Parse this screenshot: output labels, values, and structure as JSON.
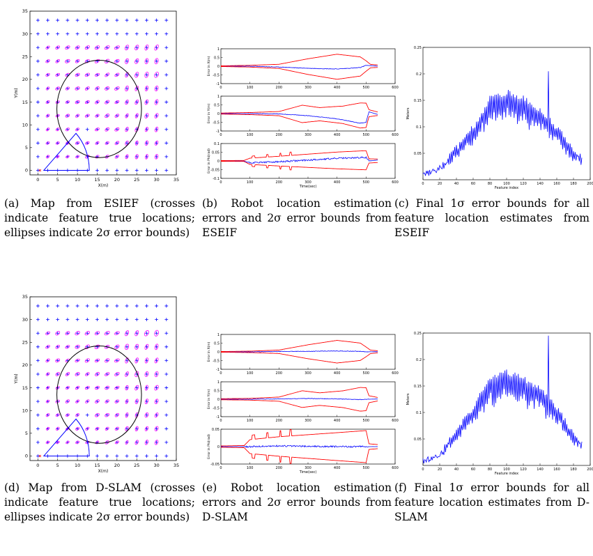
{
  "colors": {
    "axis": "#000000",
    "error": "#0000ff",
    "bound": "#ff0000",
    "landmark": "#0000ff",
    "ellipse": "#ff00ff",
    "circle": "#000000"
  },
  "captions": [
    {
      "id": "a",
      "text": "(a) Map from ESIEF (crosses indicate feature true locations; ellipses indicate 2σ error bounds)"
    },
    {
      "id": "b",
      "text": "(b) Robot location estimation errors and 2σ error bounds from ESEIF"
    },
    {
      "id": "c",
      "text": "(c) Final 1σ error bounds for all feature location estimates from ESEIF"
    },
    {
      "id": "d",
      "text": "(d) Map from D-SLAM (crosses indicate feature true locations; ellipses indicate 2σ error bounds)"
    },
    {
      "id": "e",
      "text": "(e) Robot location estimation errors and 2σ error bounds from D-SLAM"
    },
    {
      "id": "f",
      "text": "(f) Final 1σ error bounds for all feature location estimates from D-SLAM"
    }
  ],
  "chart_data": [
    {
      "id": "a",
      "type": "scatter",
      "xlabel": "X(m)",
      "ylabel": "Y(m)",
      "xlim": [
        -2,
        35
      ],
      "ylim": [
        -1,
        35
      ],
      "xticks": [
        0,
        5,
        10,
        15,
        20,
        25,
        30,
        35
      ],
      "yticks": [
        0,
        5,
        10,
        15,
        20,
        25,
        30,
        35
      ],
      "landmarks": {
        "x_start": 0,
        "x_end": 34,
        "x_step": 2.5,
        "y_start": 0,
        "y_end": 34,
        "y_step": 3
      },
      "circle": {
        "cx": 15.5,
        "cy": 13.5,
        "r": 10.7
      },
      "sensor_wedge": {
        "apex": [
          1.5,
          0
        ],
        "range": 11.5,
        "angles_deg": [
          0,
          45
        ]
      }
    },
    {
      "id": "b",
      "type": "line",
      "xlabel": "Time(sec)",
      "xlim": [
        0,
        600
      ],
      "xticks": [
        0,
        100,
        200,
        300,
        400,
        500,
        600
      ],
      "subplots": [
        {
          "ylabel": "Error in X(m)",
          "ylim": [
            -1,
            1
          ],
          "yticks": [
            "-1",
            "-0.5",
            "0",
            "0.5",
            "1"
          ],
          "bound_points": [
            [
              0,
              0.02
            ],
            [
              100,
              0.05
            ],
            [
              200,
              0.12
            ],
            [
              300,
              0.45
            ],
            [
              400,
              0.72
            ],
            [
              480,
              0.55
            ],
            [
              500,
              0.3
            ],
            [
              515,
              0.1
            ],
            [
              540,
              0.07
            ]
          ],
          "error_points": [
            [
              0,
              0
            ],
            [
              100,
              0
            ],
            [
              200,
              -0.05
            ],
            [
              300,
              -0.12
            ],
            [
              400,
              -0.16
            ],
            [
              480,
              -0.08
            ],
            [
              500,
              0.05
            ],
            [
              540,
              0
            ]
          ]
        },
        {
          "ylabel": "Error in Y(m)",
          "ylim": [
            -1,
            1
          ],
          "yticks": [
            "-1",
            "-0.5",
            "0",
            "0.5",
            "1"
          ],
          "bound_points": [
            [
              0,
              0.03
            ],
            [
              100,
              0.06
            ],
            [
              200,
              0.12
            ],
            [
              280,
              0.5
            ],
            [
              340,
              0.38
            ],
            [
              420,
              0.5
            ],
            [
              480,
              0.72
            ],
            [
              500,
              0.7
            ],
            [
              510,
              0.2
            ],
            [
              540,
              0.1
            ]
          ],
          "error_points": [
            [
              0,
              0
            ],
            [
              100,
              0
            ],
            [
              200,
              -0.02
            ],
            [
              300,
              -0.12
            ],
            [
              400,
              -0.3
            ],
            [
              480,
              -0.55
            ],
            [
              500,
              -0.5
            ],
            [
              510,
              0.1
            ],
            [
              540,
              -0.05
            ]
          ]
        },
        {
          "ylabel": "Error in Phi(rad)",
          "ylim": [
            -0.1,
            0.1
          ],
          "yticks": [
            "-0.1",
            "-0.05",
            "0",
            "0.05",
            "0.1"
          ],
          "bound_points": [
            [
              0,
              0.002
            ],
            [
              80,
              0.003
            ],
            [
              100,
              0.018
            ],
            [
              200,
              0.028
            ],
            [
              300,
              0.038
            ],
            [
              400,
              0.048
            ],
            [
              500,
              0.055
            ],
            [
              510,
              0.012
            ],
            [
              540,
              0.01
            ]
          ],
          "error_points": [
            [
              0,
              0
            ],
            [
              80,
              0
            ],
            [
              100,
              -0.01
            ],
            [
              200,
              -0.005
            ],
            [
              300,
              0.005
            ],
            [
              400,
              0.015
            ],
            [
              500,
              0.02
            ],
            [
              510,
              0
            ],
            [
              540,
              0.005
            ]
          ]
        }
      ]
    },
    {
      "id": "c",
      "type": "line",
      "xlabel": "Feature index",
      "ylabel": "Meters",
      "xlim": [
        0,
        200
      ],
      "ylim": [
        0,
        0.25
      ],
      "xticks": [
        0,
        20,
        40,
        60,
        80,
        100,
        120,
        140,
        160,
        180,
        200
      ],
      "yticks": [
        "0.05",
        "0.1",
        "0.15",
        "0.2",
        "0.25"
      ],
      "envelope_points": [
        [
          0,
          0.008
        ],
        [
          20,
          0.02
        ],
        [
          40,
          0.055
        ],
        [
          60,
          0.09
        ],
        [
          80,
          0.14
        ],
        [
          100,
          0.15
        ],
        [
          120,
          0.14
        ],
        [
          140,
          0.12
        ],
        [
          160,
          0.09
        ],
        [
          180,
          0.05
        ],
        [
          190,
          0.04
        ]
      ],
      "peak_max": 0.205
    },
    {
      "id": "d",
      "type": "scatter",
      "xlabel": "X(m)",
      "ylabel": "Y(m)",
      "xlim": [
        -2,
        35
      ],
      "ylim": [
        -1,
        35
      ],
      "xticks": [
        0,
        5,
        10,
        15,
        20,
        25,
        30,
        35
      ],
      "yticks": [
        0,
        5,
        10,
        15,
        20,
        25,
        30,
        35
      ],
      "landmarks": {
        "x_start": 0,
        "x_end": 34,
        "x_step": 2.5,
        "y_start": 0,
        "y_end": 34,
        "y_step": 3
      },
      "circle": {
        "cx": 15.5,
        "cy": 13.5,
        "r": 10.7
      },
      "sensor_wedge": {
        "apex": [
          1.5,
          0
        ],
        "range": 11.5,
        "angles_deg": [
          0,
          45
        ]
      }
    },
    {
      "id": "e",
      "type": "line",
      "xlabel": "Time(sec)",
      "xlim": [
        0,
        600
      ],
      "xticks": [
        0,
        100,
        200,
        300,
        400,
        500,
        600
      ],
      "subplots": [
        {
          "ylabel": "Error in X(m)",
          "ylim": [
            -1,
            1
          ],
          "yticks": [
            "-1",
            "-0.5",
            "0",
            "0.5",
            "1"
          ],
          "bound_points": [
            [
              0,
              0.02
            ],
            [
              100,
              0.04
            ],
            [
              200,
              0.1
            ],
            [
              300,
              0.4
            ],
            [
              400,
              0.65
            ],
            [
              480,
              0.5
            ],
            [
              500,
              0.28
            ],
            [
              515,
              0.1
            ],
            [
              540,
              0.06
            ]
          ],
          "error_points": [
            [
              0,
              0
            ],
            [
              100,
              0
            ],
            [
              200,
              0.02
            ],
            [
              300,
              0.03
            ],
            [
              400,
              0.05
            ],
            [
              480,
              0.03
            ],
            [
              500,
              0
            ],
            [
              540,
              0.01
            ]
          ]
        },
        {
          "ylabel": "Error in Y(m)",
          "ylim": [
            -1,
            1
          ],
          "yticks": [
            "-1",
            "-0.5",
            "0",
            "0.5",
            "1"
          ],
          "bound_points": [
            [
              0,
              0.03
            ],
            [
              100,
              0.05
            ],
            [
              200,
              0.12
            ],
            [
              280,
              0.48
            ],
            [
              340,
              0.36
            ],
            [
              420,
              0.48
            ],
            [
              480,
              0.68
            ],
            [
              500,
              0.66
            ],
            [
              510,
              0.2
            ],
            [
              540,
              0.1
            ]
          ],
          "error_points": [
            [
              0,
              0
            ],
            [
              100,
              0
            ],
            [
              200,
              0.02
            ],
            [
              300,
              0.04
            ],
            [
              400,
              0.02
            ],
            [
              480,
              -0.02
            ],
            [
              500,
              0
            ],
            [
              540,
              0.01
            ]
          ]
        },
        {
          "ylabel": "Error in Phi(rad)",
          "ylim": [
            -0.05,
            0.05
          ],
          "yticks": [
            "-0.05",
            "0",
            "0.05"
          ],
          "bound_points": [
            [
              0,
              0.002
            ],
            [
              80,
              0.003
            ],
            [
              100,
              0.02
            ],
            [
              200,
              0.028
            ],
            [
              300,
              0.034
            ],
            [
              400,
              0.04
            ],
            [
              500,
              0.046
            ],
            [
              510,
              0.008
            ],
            [
              540,
              0.006
            ]
          ],
          "error_points": [
            [
              0,
              0
            ],
            [
              80,
              0
            ],
            [
              100,
              0
            ],
            [
              200,
              0.002
            ],
            [
              300,
              0.001
            ],
            [
              400,
              0
            ],
            [
              500,
              0
            ],
            [
              540,
              0
            ]
          ]
        }
      ]
    },
    {
      "id": "f",
      "type": "line",
      "xlabel": "Feature index",
      "ylabel": "Meters",
      "xlim": [
        0,
        200
      ],
      "ylim": [
        0,
        0.25
      ],
      "xticks": [
        0,
        20,
        40,
        60,
        80,
        100,
        120,
        140,
        160,
        180,
        200
      ],
      "yticks": [
        "0.05",
        "0.1",
        "0.15",
        "0.2",
        "0.25"
      ],
      "envelope_points": [
        [
          0,
          0.008
        ],
        [
          20,
          0.02
        ],
        [
          40,
          0.06
        ],
        [
          60,
          0.1
        ],
        [
          80,
          0.15
        ],
        [
          100,
          0.16
        ],
        [
          120,
          0.15
        ],
        [
          140,
          0.13
        ],
        [
          160,
          0.1
        ],
        [
          180,
          0.055
        ],
        [
          190,
          0.04
        ]
      ],
      "peak_max": 0.245
    }
  ]
}
